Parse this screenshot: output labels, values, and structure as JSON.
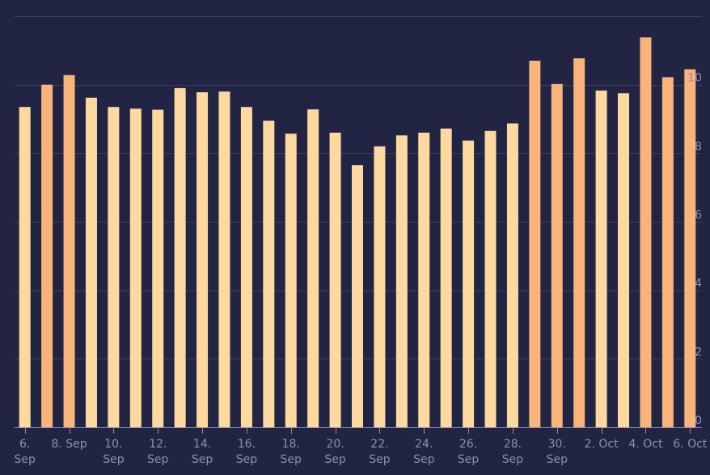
{
  "chart_data": {
    "type": "bar",
    "categories": [
      "6 Sep",
      "7 Sep",
      "8 Sep",
      "9 Sep",
      "10 Sep",
      "11 Sep",
      "12 Sep",
      "13 Sep",
      "14 Sep",
      "15 Sep",
      "16 Sep",
      "17 Sep",
      "18 Sep",
      "19 Sep",
      "20 Sep",
      "21 Sep",
      "22 Sep",
      "23 Sep",
      "24 Sep",
      "25 Sep",
      "26 Sep",
      "27 Sep",
      "28 Sep",
      "29 Sep",
      "30 Sep",
      "1 Oct",
      "2 Oct",
      "3 Oct",
      "4 Oct",
      "5 Oct",
      "6 Oct"
    ],
    "values": [
      9.35,
      10.0,
      10.28,
      9.62,
      9.35,
      9.3,
      9.27,
      9.9,
      9.78,
      9.8,
      9.35,
      8.95,
      8.57,
      9.28,
      8.6,
      7.65,
      8.2,
      8.52,
      8.6,
      8.72,
      8.37,
      8.65,
      8.87,
      10.7,
      10.02,
      10.77,
      9.83,
      9.75,
      11.38,
      10.22,
      10.45
    ],
    "highlighted": [
      false,
      true,
      true,
      false,
      false,
      false,
      false,
      false,
      false,
      false,
      false,
      false,
      false,
      false,
      false,
      false,
      false,
      false,
      false,
      false,
      false,
      false,
      false,
      true,
      true,
      true,
      false,
      false,
      true,
      true,
      true
    ],
    "x_tick_labels": [
      {
        "index": 0,
        "lines": [
          "6.",
          "Sep"
        ]
      },
      {
        "index": 2,
        "lines": [
          "8. Sep"
        ]
      },
      {
        "index": 4,
        "lines": [
          "10.",
          "Sep"
        ]
      },
      {
        "index": 6,
        "lines": [
          "12.",
          "Sep"
        ]
      },
      {
        "index": 8,
        "lines": [
          "14.",
          "Sep"
        ]
      },
      {
        "index": 10,
        "lines": [
          "16.",
          "Sep"
        ]
      },
      {
        "index": 12,
        "lines": [
          "18.",
          "Sep"
        ]
      },
      {
        "index": 14,
        "lines": [
          "20.",
          "Sep"
        ]
      },
      {
        "index": 16,
        "lines": [
          "22.",
          "Sep"
        ]
      },
      {
        "index": 18,
        "lines": [
          "24.",
          "Sep"
        ]
      },
      {
        "index": 20,
        "lines": [
          "26.",
          "Sep"
        ]
      },
      {
        "index": 22,
        "lines": [
          "28.",
          "Sep"
        ]
      },
      {
        "index": 24,
        "lines": [
          "30.",
          "Sep"
        ]
      },
      {
        "index": 26,
        "lines": [
          "2. Oct"
        ]
      },
      {
        "index": 28,
        "lines": [
          "4. Oct"
        ]
      },
      {
        "index": 30,
        "lines": [
          "6. Oct"
        ]
      }
    ],
    "y_ticks": [
      0,
      2,
      4,
      6,
      8,
      10
    ],
    "ylim": [
      0,
      12
    ],
    "title": "",
    "xlabel": "",
    "ylabel": "",
    "grid": true,
    "colors": {
      "background": "#212442",
      "bar": "#fdd9a0",
      "bar_highlight": "#f8b47a",
      "grid": "#3a3e62",
      "axis": "#8a8fb0",
      "label": "#8d91ad"
    }
  }
}
